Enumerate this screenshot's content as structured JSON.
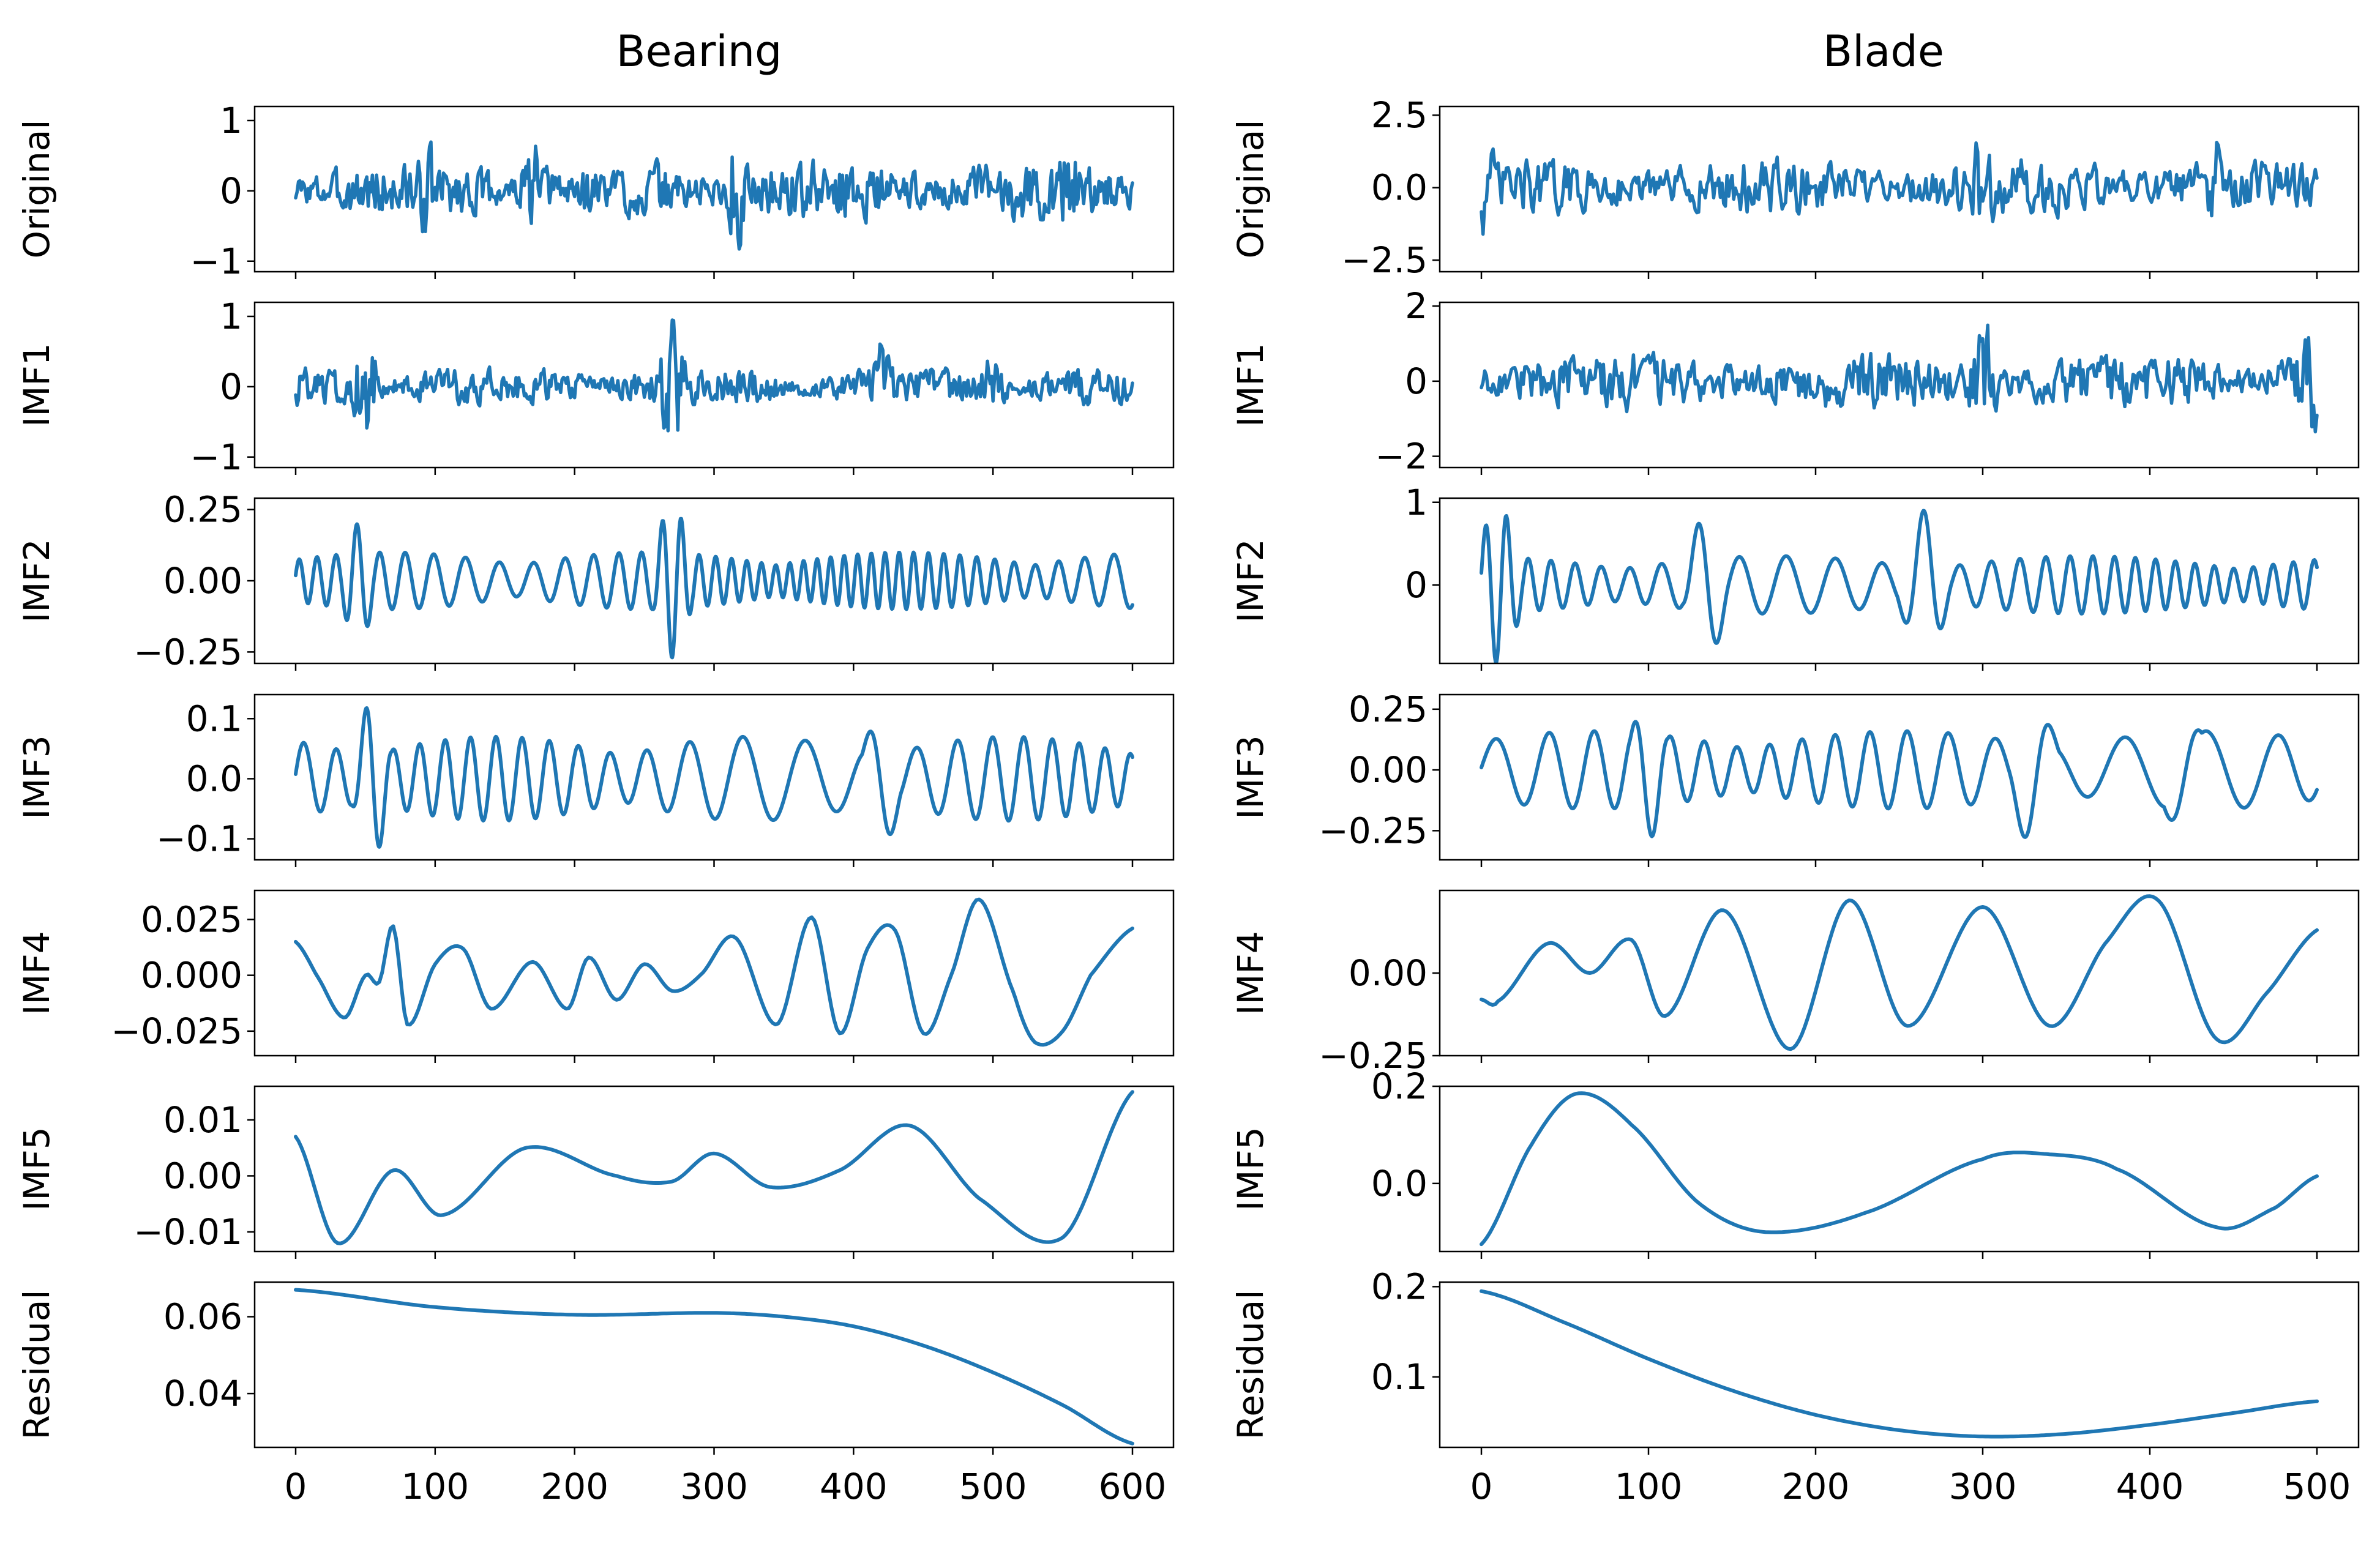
{
  "figure": {
    "description": "EMD decomposition: Bearing vs Blade signals"
  },
  "colors": {
    "series": "#1f77b4",
    "axes": "#000000"
  },
  "chart_data": [
    {
      "type": "line",
      "title": "Bearing",
      "xlabel": "",
      "xlim": [
        0,
        600
      ],
      "xticks": [
        0,
        100,
        200,
        300,
        400,
        500,
        600
      ],
      "panels": [
        {
          "ylabel": "Original",
          "ylim": [
            -1.15,
            1.2
          ],
          "yticks": [
            -1,
            0,
            1
          ],
          "yticklabels": [
            "−1",
            "0",
            "1"
          ],
          "signal": "noise",
          "amplitude": 0.55,
          "bursts": [
            {
              "x": 95,
              "a": 0.9
            },
            {
              "x": 170,
              "a": 0.95
            },
            {
              "x": 315,
              "a": 1.15
            },
            {
              "x": 555,
              "a": 1.1
            }
          ],
          "freq": 0.45
        },
        {
          "ylabel": "IMF1",
          "ylim": [
            -1.15,
            1.2
          ],
          "yticks": [
            -1,
            0,
            1
          ],
          "yticklabels": [
            "−1",
            "0",
            "1"
          ],
          "signal": "noise",
          "amplitude": 0.35,
          "bursts": [
            {
              "x": 50,
              "a": 1.1
            },
            {
              "x": 270,
              "a": 1.2
            },
            {
              "x": 420,
              "a": 0.8
            },
            {
              "x": 500,
              "a": 0.75
            }
          ],
          "freq": 0.55
        },
        {
          "ylabel": "IMF2",
          "ylim": [
            -0.29,
            0.29
          ],
          "yticks": [
            -0.25,
            0.0,
            0.25
          ],
          "yticklabels": [
            "−0.25",
            "0.00",
            "0.25"
          ],
          "signal": "osc",
          "amplitude": 0.1,
          "bursts": [
            {
              "x": 45,
              "a": 0.2
            },
            {
              "x": 270,
              "a": 0.27
            }
          ],
          "freq": 0.09
        },
        {
          "ylabel": "IMF3",
          "ylim": [
            -0.135,
            0.14
          ],
          "yticks": [
            -0.1,
            0.0,
            0.1
          ],
          "yticklabels": [
            "−0.1",
            "0.0",
            "0.1"
          ],
          "signal": "osc",
          "amplitude": 0.07,
          "bursts": [
            {
              "x": 55,
              "a": 0.13
            },
            {
              "x": 420,
              "a": 0.12
            }
          ],
          "freq": 0.048
        },
        {
          "ylabel": "IMF4",
          "ylim": [
            -0.036,
            0.038
          ],
          "yticks": [
            -0.025,
            0.0,
            0.025
          ],
          "yticklabels": [
            "−0.025",
            "0.000",
            "0.025"
          ],
          "signal": "points",
          "x": [
            0,
            15,
            35,
            50,
            60,
            70,
            80,
            100,
            120,
            140,
            170,
            195,
            210,
            230,
            250,
            270,
            290,
            315,
            345,
            370,
            390,
            410,
            430,
            450,
            470,
            490,
            515,
            530,
            550,
            570,
            600
          ],
          "y": [
            0.015,
            0.0,
            -0.019,
            0.0,
            -0.003,
            0.022,
            -0.022,
            0.005,
            0.012,
            -0.015,
            0.006,
            -0.015,
            0.008,
            -0.011,
            0.005,
            -0.007,
            0.0,
            0.017,
            -0.022,
            0.026,
            -0.026,
            0.012,
            0.02,
            -0.026,
            0.0,
            0.034,
            -0.008,
            -0.03,
            -0.025,
            0.0,
            0.021
          ]
        },
        {
          "ylabel": "IMF5",
          "ylim": [
            -0.0135,
            0.016
          ],
          "yticks": [
            -0.01,
            0.0,
            0.01
          ],
          "yticklabels": [
            "−0.01",
            "0.00",
            "0.01"
          ],
          "signal": "points",
          "x": [
            0,
            30,
            70,
            105,
            165,
            230,
            270,
            300,
            340,
            390,
            440,
            490,
            550,
            600
          ],
          "y": [
            0.007,
            -0.012,
            0.001,
            -0.007,
            0.005,
            0.0,
            -0.001,
            0.004,
            -0.002,
            0.001,
            0.009,
            -0.004,
            -0.011,
            0.015
          ]
        },
        {
          "ylabel": "Residual",
          "ylim": [
            0.026,
            0.069
          ],
          "yticks": [
            0.04,
            0.06
          ],
          "yticklabels": [
            "0.04",
            "0.06"
          ],
          "signal": "points",
          "x": [
            0,
            100,
            200,
            300,
            350,
            400,
            450,
            500,
            550,
            600
          ],
          "y": [
            0.067,
            0.0625,
            0.0605,
            0.061,
            0.06,
            0.0575,
            0.0525,
            0.0455,
            0.037,
            0.027
          ]
        }
      ]
    },
    {
      "type": "line",
      "title": "Blade",
      "xlabel": "",
      "xlim": [
        0,
        500
      ],
      "xticks": [
        0,
        100,
        200,
        300,
        400,
        500
      ],
      "panels": [
        {
          "ylabel": "Original",
          "ylim": [
            -2.9,
            2.8
          ],
          "yticks": [
            -2.5,
            0.0,
            2.5
          ],
          "yticklabels": [
            "−2.5",
            "0.0",
            "2.5"
          ],
          "signal": "noise",
          "amplitude": 1.3,
          "bursts": [
            {
              "x": 0,
              "a": 2.5
            },
            {
              "x": 300,
              "a": 2.5
            },
            {
              "x": 440,
              "a": 2.6
            }
          ],
          "freq": 0.5
        },
        {
          "ylabel": "IMF1",
          "ylim": [
            -2.3,
            2.1
          ],
          "yticks": [
            -2,
            0,
            2
          ],
          "yticklabels": [
            "−2",
            "0",
            "2"
          ],
          "signal": "noise",
          "amplitude": 1.0,
          "bursts": [
            {
              "x": 300,
              "a": 2.0
            },
            {
              "x": 495,
              "a": 2.1
            }
          ],
          "freq": 0.6
        },
        {
          "ylabel": "IMF2",
          "ylim": [
            -0.95,
            1.05
          ],
          "yticks": [
            0,
            1
          ],
          "yticklabels": [
            "0",
            "1"
          ],
          "signal": "osc",
          "amplitude": 0.35,
          "bursts": [
            {
              "x": 10,
              "a": 0.95
            },
            {
              "x": 135,
              "a": 0.85
            },
            {
              "x": 265,
              "a": 0.9
            }
          ],
          "freq": 0.075
        },
        {
          "ylabel": "IMF3",
          "ylim": [
            -0.37,
            0.31
          ],
          "yticks": [
            -0.25,
            0.0,
            0.25
          ],
          "yticklabels": [
            "−0.25",
            "0.00",
            "0.25"
          ],
          "signal": "osc",
          "amplitude": 0.16,
          "bursts": [
            {
              "x": 100,
              "a": 0.28
            },
            {
              "x": 330,
              "a": 0.32
            },
            {
              "x": 420,
              "a": 0.3
            }
          ],
          "freq": 0.045
        },
        {
          "ylabel": "IMF4",
          "ylim": [
            -0.25,
            0.25
          ],
          "yticks": [
            -0.25,
            0.0
          ],
          "yticklabels": [
            "−0.25",
            "0.00"
          ],
          "signal": "points",
          "x": [
            0,
            10,
            40,
            65,
            90,
            110,
            145,
            185,
            220,
            255,
            300,
            340,
            375,
            405,
            440,
            470,
            500
          ],
          "y": [
            -0.08,
            -0.085,
            0.09,
            0.0,
            0.1,
            -0.13,
            0.19,
            -0.23,
            0.22,
            -0.16,
            0.2,
            -0.16,
            0.1,
            0.22,
            -0.2,
            -0.06,
            0.13
          ]
        },
        {
          "ylabel": "IMF5",
          "ylim": [
            -0.14,
            0.2
          ],
          "yticks": [
            0.0,
            0.2
          ],
          "yticklabels": [
            "0.0",
            "0.2"
          ],
          "signal": "points",
          "x": [
            0,
            30,
            57,
            90,
            130,
            170,
            230,
            300,
            340,
            380,
            440,
            475,
            500
          ],
          "y": [
            -0.125,
            0.08,
            0.185,
            0.12,
            -0.04,
            -0.1,
            -0.06,
            0.05,
            0.06,
            0.03,
            -0.09,
            -0.05,
            0.015
          ]
        },
        {
          "ylabel": "Residual",
          "ylim": [
            0.022,
            0.205
          ],
          "yticks": [
            0.1,
            0.2
          ],
          "yticklabels": [
            "0.1",
            "0.2"
          ],
          "signal": "points",
          "x": [
            0,
            50,
            100,
            150,
            200,
            250,
            300,
            350,
            400,
            450,
            500
          ],
          "y": [
            0.195,
            0.16,
            0.12,
            0.085,
            0.058,
            0.041,
            0.034,
            0.037,
            0.047,
            0.06,
            0.073
          ]
        }
      ]
    }
  ]
}
